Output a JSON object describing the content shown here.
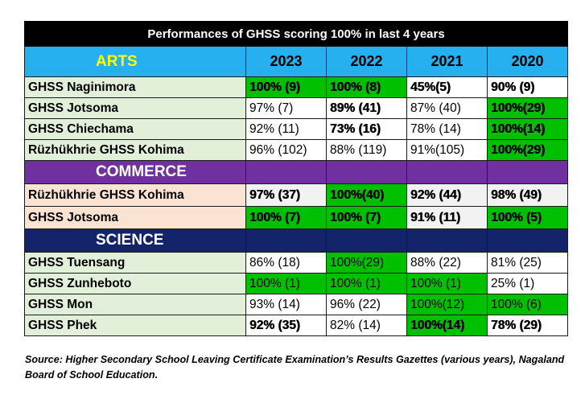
{
  "title": "Performances of GHSS scoring 100% in last 4 years",
  "colors": {
    "arts_header": "#27B0EF",
    "arts_header_text": "#FFFF00",
    "commerce_header": "#7030A0",
    "science_header": "#14246B",
    "highlight_green": "#00C000",
    "row_light_green": "#E2EFD9",
    "row_peach": "#FBE3D3",
    "row_grey": "#F2F2F2"
  },
  "years": [
    "2023",
    "2022",
    "2021",
    "2020"
  ],
  "sections": [
    {
      "name": "ARTS",
      "rows": [
        {
          "school": "GHSS Naginimora",
          "values": [
            "100% (9)",
            "100% (8)",
            "45%(5)",
            "90% (9)"
          ]
        },
        {
          "school": "GHSS Jotsoma",
          "values": [
            "97% (7)",
            "89% (41)",
            "87% (40)",
            "100%(29)"
          ]
        },
        {
          "school": "GHSS Chiechama",
          "values": [
            "92% (11)",
            "73% (16)",
            "78% (14)",
            "100%(14)"
          ]
        },
        {
          "school": "Rüzhükhrie GHSS Kohima",
          "values": [
            "96% (102)",
            "88% (119)",
            "91%(105)",
            "100%(29)"
          ]
        }
      ]
    },
    {
      "name": "COMMERCE",
      "rows": [
        {
          "school": "Rüzhükhrie GHSS Kohima",
          "values": [
            "97% (37)",
            "100%(40)",
            "92% (44)",
            "98% (49)"
          ]
        },
        {
          "school": "GHSS Jotsoma",
          "values": [
            "100% (7)",
            "100% (7)",
            "91% (11)",
            "100% (5)"
          ]
        }
      ]
    },
    {
      "name": "SCIENCE",
      "rows": [
        {
          "school": "GHSS Tuensang",
          "values": [
            "86% (18)",
            "100%(29)",
            "88% (22)",
            "81% (25)"
          ]
        },
        {
          "school": "GHSS Zunheboto",
          "values": [
            "100% (1)",
            "100% (1)",
            "100% (1)",
            "25% (1)"
          ]
        },
        {
          "school": "GHSS Mon",
          "values": [
            "93% (14)",
            "96% (22)",
            "100%(12)",
            "100% (6)"
          ]
        },
        {
          "school": "GHSS Phek",
          "values": [
            "92% (35)",
            "82% (14)",
            "100%(14)",
            "78% (29)"
          ]
        }
      ]
    }
  ],
  "source": "Source:  Higher Secondary School Leaving Certificate Examination’s Results Gazettes (various years), Nagaland Board of School Education."
}
